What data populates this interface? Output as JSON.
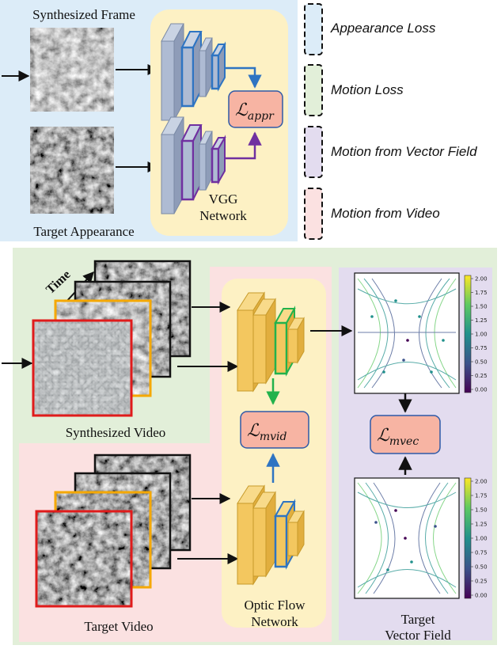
{
  "top_panel": {
    "synth_frame_label": "Synthesized Frame",
    "target_appearance_label": "Target Appearance",
    "vgg_label_line1": "VGG",
    "vgg_label_line2": "Network",
    "loss_appr": {
      "symbol": "ℒ",
      "subscript": "appr"
    }
  },
  "legend": [
    {
      "label": "Appearance Loss",
      "color": "#dcecf8"
    },
    {
      "label": "Motion Loss",
      "color": "#e2efd9"
    },
    {
      "label": "Motion from Vector Field",
      "color": "#e3dcef"
    },
    {
      "label": "Motion from Video",
      "color": "#fbe1e1"
    }
  ],
  "bottom_panel": {
    "time_label": "Time",
    "synth_video_label": "Synthesized Video",
    "target_video_label": "Target Video",
    "flow_label_line1": "Optic Flow",
    "flow_label_line2": "Network",
    "loss_mvid": {
      "symbol": "ℒ",
      "subscript": "mvid"
    },
    "loss_mvec": {
      "symbol": "ℒ",
      "subscript": "mvec"
    },
    "target_field_line1": "Target",
    "target_field_line2": "Vector Field",
    "colorbar_ticks": [
      "2.00",
      "1.75",
      "1.50",
      "1.25",
      "1.00",
      "0.75",
      "0.50",
      "0.25",
      "0.00"
    ]
  },
  "colors": {
    "appearance_bg": "#dcecf8",
    "motion_bg": "#e2efd9",
    "vector_bg": "#e3dcef",
    "video_bg": "#fbe1e1",
    "network_bg": "#fdf1c4",
    "loss_fill": "#f7b4a3",
    "vgg_block": "#aebbd3",
    "flow_block": "#f3c75f",
    "blue_outline": "#2e74c2",
    "purple_outline": "#7030a0",
    "green_outline": "#22b24c",
    "orange_frame": "#f5a800",
    "red_frame": "#e01b1b"
  }
}
